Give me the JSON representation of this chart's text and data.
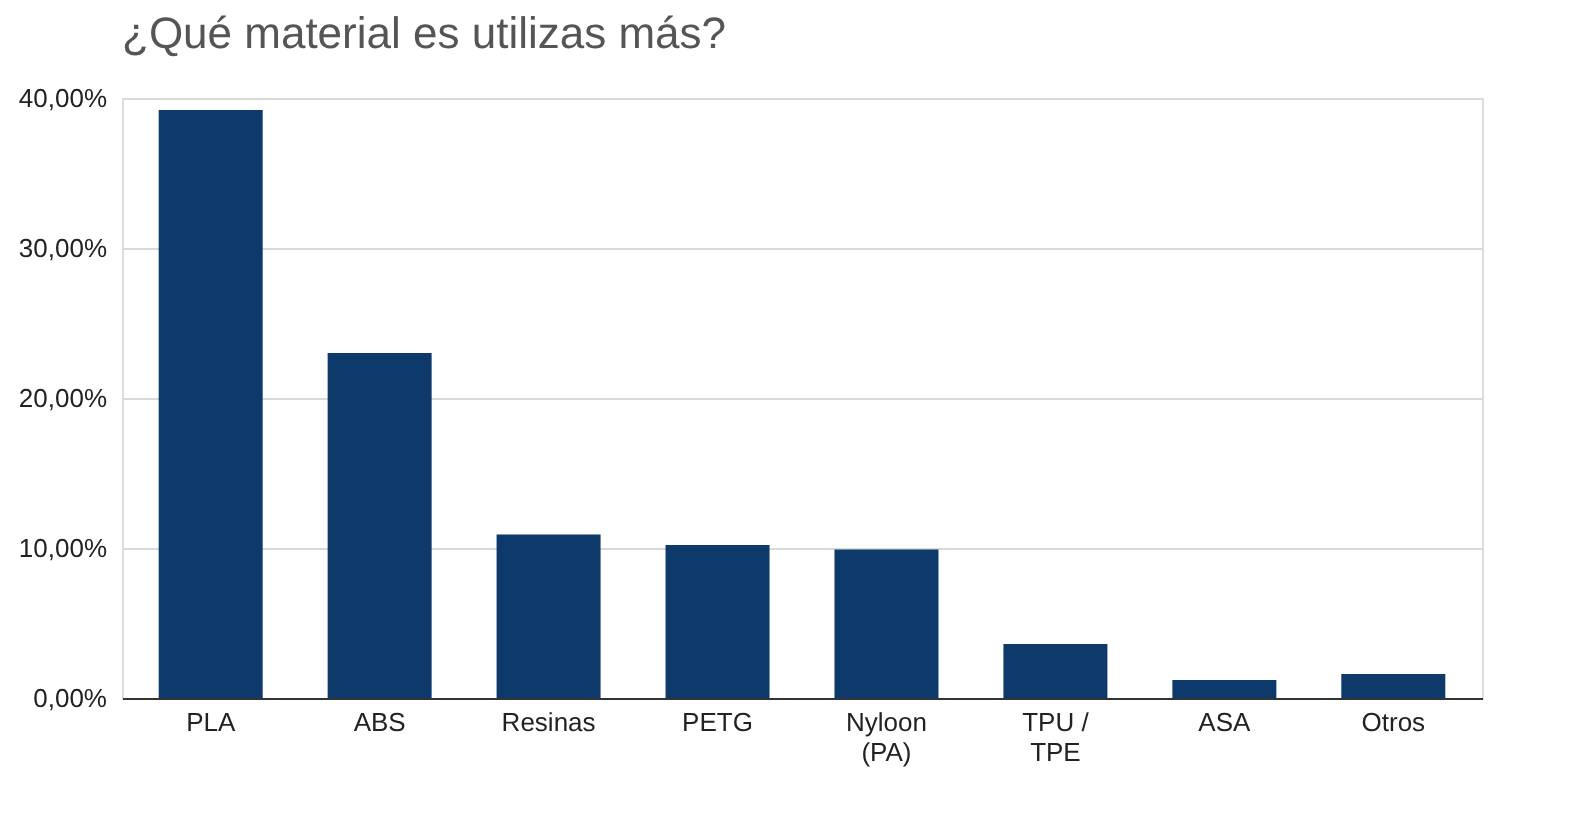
{
  "chart_data": {
    "type": "bar",
    "title": "¿Qué material es utilizas más?",
    "categories": [
      "PLA",
      "ABS",
      "Resinas",
      "PETG",
      "Nyloon (PA)",
      "TPU / TPE",
      "ASA",
      "Otros"
    ],
    "values": [
      39.2,
      23.0,
      10.9,
      10.2,
      9.9,
      3.6,
      1.2,
      1.6
    ],
    "color": "#0d3a6b",
    "ylim": [
      0,
      40
    ],
    "yticks": [
      {
        "value": 0,
        "label": "0,00%"
      },
      {
        "value": 10,
        "label": "10,00%"
      },
      {
        "value": 20,
        "label": "20,00%"
      },
      {
        "value": 30,
        "label": "30,00%"
      },
      {
        "value": 40,
        "label": "40,00%"
      }
    ],
    "grid": "y"
  }
}
